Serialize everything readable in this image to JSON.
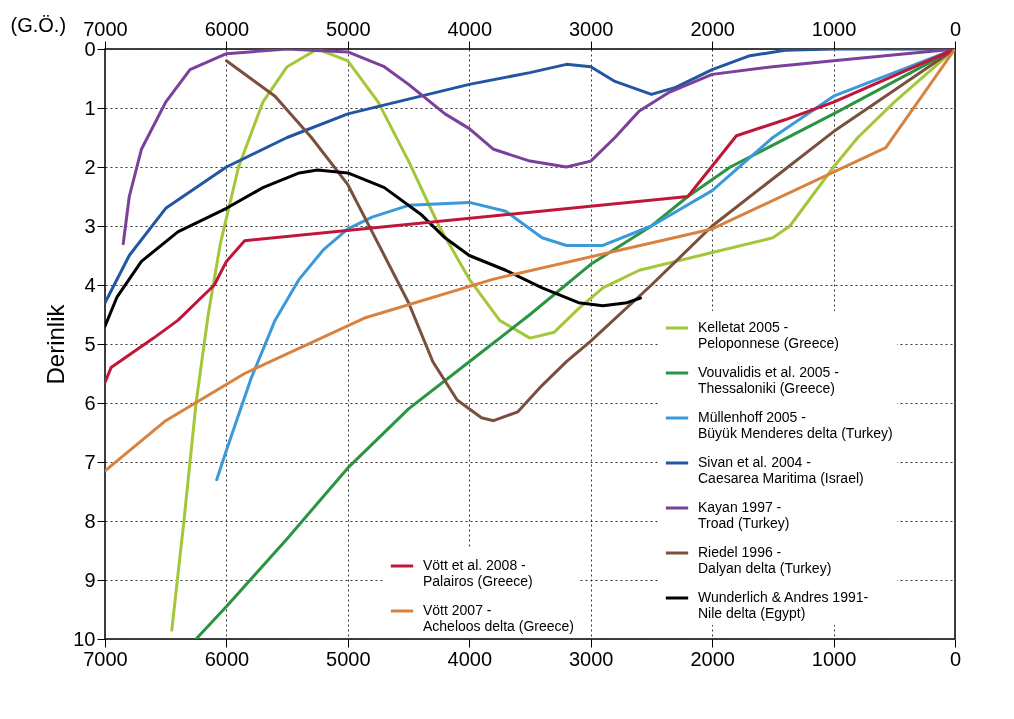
{
  "chart_data": {
    "type": "line",
    "ylabel": "Derinlik",
    "x2label": "(G.Ö.)",
    "xlim": [
      7000,
      0
    ],
    "xticks": [
      7000,
      6000,
      5000,
      4000,
      3000,
      2000,
      1000,
      0
    ],
    "x2lim": [
      7000,
      0
    ],
    "x2ticks": [
      7000,
      6000,
      5000,
      4000,
      3000,
      2000,
      1000,
      0
    ],
    "ylim": [
      10,
      0
    ],
    "yticks": [
      0,
      1,
      2,
      3,
      4,
      5,
      6,
      7,
      8,
      9,
      10
    ],
    "grid": true,
    "legend": "bottom right",
    "line_style": "solid",
    "marker": "none",
    "series": [
      {
        "name": "Vött et al. 2008 - Palairos (Greece)",
        "color": "#c0163a",
        "x": [
          7000,
          6950,
          6600,
          6400,
          6100,
          6000,
          5850,
          2200,
          1800,
          1400,
          1000,
          0
        ],
        "values": [
          5.65,
          5.4,
          4.9,
          4.6,
          4.0,
          3.6,
          3.25,
          2.5,
          1.47,
          1.2,
          0.9,
          0
        ]
      },
      {
        "name": "Vött 2007 - Acheloos delta (Greece)",
        "color": "#d9823f",
        "x": [
          7000,
          6500,
          5850,
          4850,
          3800,
          2000,
          570,
          0
        ],
        "values": [
          7.15,
          6.3,
          5.5,
          4.55,
          3.9,
          3.05,
          1.67,
          0
        ]
      },
      {
        "name": "Kelletat 2005 - Peloponnese (Greece)",
        "color": "#a4c639",
        "x": [
          6450,
          6350,
          6250,
          6150,
          6050,
          5900,
          5700,
          5500,
          5250,
          5000,
          4750,
          4500,
          4250,
          4000,
          3750,
          3500,
          3300,
          3100,
          2900,
          2600,
          2000,
          1500,
          1360,
          1000,
          800,
          500,
          0
        ],
        "values": [
          9.85,
          8,
          6,
          4.5,
          3.3,
          2,
          0.9,
          0.3,
          0,
          0.2,
          0.9,
          1.9,
          3.0,
          3.9,
          4.6,
          4.9,
          4.8,
          4.4,
          4.05,
          3.75,
          3.45,
          3.2,
          3.0,
          2.0,
          1.5,
          0.9,
          0
        ]
      },
      {
        "name": "Vouvalidis et al. 2005 - Thessaloniki (Greece)",
        "color": "#2a9440",
        "x": [
          6250,
          6000,
          5500,
          5000,
          4500,
          4000,
          3500,
          3000,
          2500,
          2200,
          1850,
          1000,
          0
        ],
        "values": [
          10,
          9.45,
          8.3,
          7.1,
          6.1,
          5.3,
          4.5,
          3.65,
          3.0,
          2.5,
          2.0,
          1.1,
          0
        ]
      },
      {
        "name": "Müllenhoff 2005 - Büyük Menderes delta (Turkey)",
        "color": "#3a9ad9",
        "x": [
          6080,
          6000,
          5800,
          5600,
          5400,
          5200,
          5000,
          4800,
          4500,
          4000,
          3700,
          3400,
          3200,
          2900,
          2500,
          2000,
          1500,
          1000,
          500,
          0
        ],
        "values": [
          7.3,
          6.8,
          5.6,
          4.6,
          3.9,
          3.4,
          3.05,
          2.85,
          2.65,
          2.6,
          2.75,
          3.2,
          3.33,
          3.33,
          3.0,
          2.4,
          1.5,
          0.8,
          0.4,
          0
        ]
      },
      {
        "name": "Sivan et al. 2004 - Caesarea Maritima (Israel)",
        "color": "#2356a0",
        "x": [
          7000,
          6800,
          6500,
          6000,
          5500,
          5000,
          4500,
          4000,
          3500,
          3200,
          3000,
          2800,
          2500,
          2300,
          2000,
          1700,
          1400,
          1000,
          0
        ],
        "values": [
          4.3,
          3.5,
          2.7,
          2.0,
          1.5,
          1.1,
          0.85,
          0.6,
          0.4,
          0.26,
          0.3,
          0.55,
          0.77,
          0.65,
          0.35,
          0.12,
          0.02,
          0,
          0
        ]
      },
      {
        "name": "Kayan 1997 - Troad (Turkey)",
        "color": "#7b3f9c",
        "x": [
          6850,
          6800,
          6700,
          6500,
          6300,
          6000,
          5500,
          5000,
          4700,
          4500,
          4200,
          4000,
          3800,
          3500,
          3200,
          3000,
          2800,
          2600,
          2350,
          2000,
          1500,
          1000,
          0
        ],
        "values": [
          3.3,
          2.5,
          1.7,
          0.9,
          0.35,
          0.08,
          0,
          0.05,
          0.3,
          0.6,
          1.1,
          1.35,
          1.7,
          1.9,
          2.0,
          1.9,
          1.5,
          1.05,
          0.73,
          0.43,
          0.3,
          0.2,
          0
        ]
      },
      {
        "name": "Riedel 1996 - Dalyan delta (Turkey)",
        "color": "#7a4f3e",
        "x": [
          6000,
          5600,
          5300,
          5000,
          4800,
          4500,
          4300,
          4100,
          3900,
          3800,
          3600,
          3400,
          3200,
          3000,
          2500,
          2000,
          1000,
          0
        ],
        "values": [
          0.2,
          0.8,
          1.5,
          2.3,
          3.1,
          4.3,
          5.3,
          5.95,
          6.25,
          6.3,
          6.15,
          5.7,
          5.3,
          4.95,
          4.0,
          3.0,
          1.4,
          0
        ]
      },
      {
        "name": "Wunderlich & Andres 1991- Nile delta (Egypt)",
        "color": "#000000",
        "x": [
          7000,
          6900,
          6700,
          6400,
          6000,
          5700,
          5400,
          5250,
          5000,
          4700,
          4400,
          4200,
          4000,
          3700,
          3400,
          3100,
          2900,
          2700,
          2590
        ],
        "values": [
          4.7,
          4.2,
          3.6,
          3.1,
          2.7,
          2.35,
          2.1,
          2.05,
          2.1,
          2.35,
          2.8,
          3.2,
          3.5,
          3.75,
          4.05,
          4.3,
          4.35,
          4.3,
          4.22
        ]
      }
    ]
  }
}
